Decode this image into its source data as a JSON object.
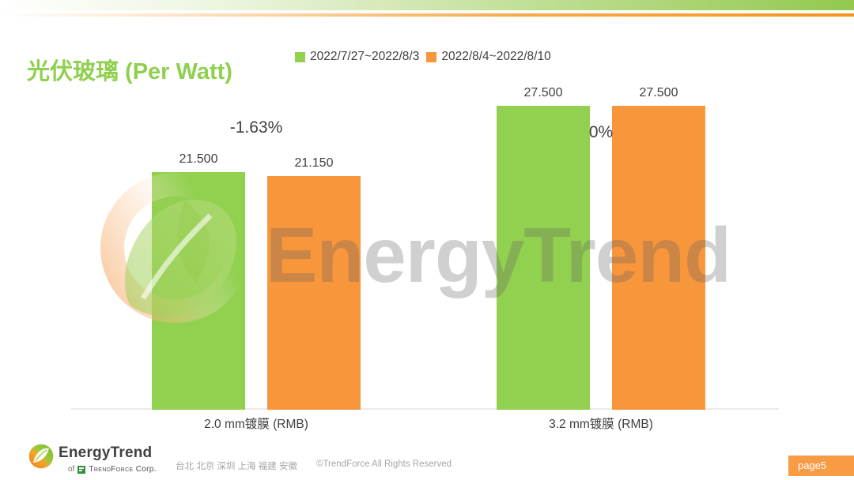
{
  "slide": {
    "title": "光伏玻璃 (Per Watt)",
    "page_label": "page5"
  },
  "legend": [
    {
      "label": "2022/7/27~2022/8/3",
      "color": "#92D050"
    },
    {
      "label": "2022/8/4~2022/8/10",
      "color": "#F8963C"
    }
  ],
  "chart_data": {
    "type": "bar",
    "categories": [
      "2.0 mm镀膜 (RMB)",
      "3.2 mm镀膜 (RMB)"
    ],
    "series": [
      {
        "name": "2022/7/27~2022/8/3",
        "color": "#92D050",
        "values": [
          21.5,
          27.5
        ]
      },
      {
        "name": "2022/8/4~2022/8/10",
        "color": "#F8963C",
        "values": [
          21.15,
          27.5
        ]
      }
    ],
    "value_labels": [
      [
        "21.500",
        "27.500"
      ],
      [
        "21.150",
        "27.500"
      ]
    ],
    "change_labels": [
      "-1.63%",
      "0%"
    ],
    "ylim": [
      0,
      28
    ],
    "grid": false,
    "legend_position": "top",
    "title": "光伏玻璃 (Per Watt)",
    "xlabel": "",
    "ylabel": ""
  },
  "watermark": {
    "text": "EnergyTrend"
  },
  "footer": {
    "brand": "EnergyTrend",
    "brand_sub_prefix": "of",
    "brand_sub_caps": "TrendForce",
    "brand_sub_tail": "Corp.",
    "cities": "台北 北京 深圳 上海 福建 安徽",
    "copyright": "©TrendForce All Rights Reserved"
  },
  "colors": {
    "title_green": "#8FD04E",
    "bar_green": "#92D050",
    "bar_orange": "#F8963C",
    "badge_orange": "#F79B45"
  }
}
